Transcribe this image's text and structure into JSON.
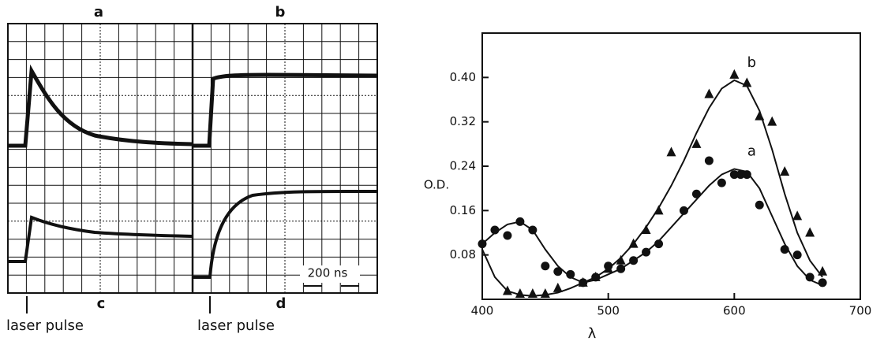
{
  "oscillogram": {
    "panel_labels": [
      "a",
      "b",
      "c",
      "d"
    ],
    "trigger_label": "laser pulse",
    "timescale": "200 ns"
  },
  "chart_data": {
    "type": "scatter",
    "xlabel": "λ",
    "ylabel": "O.D.",
    "xlim": [
      400,
      700
    ],
    "xticks": [
      400,
      500,
      600,
      700
    ],
    "ylim": [
      0,
      0.48
    ],
    "yticks": [
      0.08,
      0.16,
      0.24,
      0.32,
      {
        "value": 0.4,
        "label": "0.40"
      }
    ],
    "fit_x": [
      400,
      410,
      420,
      430,
      440,
      450,
      460,
      470,
      480,
      490,
      500,
      510,
      520,
      530,
      540,
      550,
      560,
      570,
      580,
      590,
      600,
      610,
      620,
      630,
      640,
      650,
      660,
      670
    ],
    "series": [
      {
        "name": "a",
        "marker": "circle",
        "color": "#111",
        "x": [
          400,
          410,
          420,
          430,
          440,
          450,
          460,
          470,
          480,
          490,
          500,
          510,
          520,
          530,
          540,
          560,
          570,
          580,
          590,
          600,
          605,
          610,
          620,
          640,
          650,
          660,
          670
        ],
        "values": [
          0.1,
          0.125,
          0.115,
          0.14,
          0.125,
          0.06,
          0.05,
          0.045,
          0.03,
          0.04,
          0.06,
          0.055,
          0.07,
          0.085,
          0.1,
          0.16,
          0.19,
          0.25,
          0.21,
          0.225,
          0.225,
          0.225,
          0.17,
          0.09,
          0.08,
          0.04,
          0.03
        ],
        "fit": [
          0.1,
          0.12,
          0.135,
          0.14,
          0.125,
          0.09,
          0.06,
          0.04,
          0.03,
          0.035,
          0.045,
          0.055,
          0.07,
          0.085,
          0.105,
          0.13,
          0.155,
          0.18,
          0.205,
          0.225,
          0.235,
          0.23,
          0.2,
          0.15,
          0.1,
          0.06,
          0.035,
          0.025
        ]
      },
      {
        "name": "b",
        "marker": "triangle",
        "color": "#111",
        "x": [
          420,
          430,
          440,
          450,
          460,
          480,
          490,
          500,
          510,
          520,
          530,
          540,
          550,
          570,
          580,
          600,
          610,
          620,
          630,
          640,
          650,
          660,
          670
        ],
        "values": [
          0.015,
          0.01,
          0.01,
          0.01,
          0.02,
          0.03,
          0.04,
          0.055,
          0.07,
          0.1,
          0.125,
          0.16,
          0.265,
          0.28,
          0.37,
          0.405,
          0.39,
          0.33,
          0.32,
          0.23,
          0.15,
          0.12,
          0.05
        ],
        "fit": [
          0.09,
          0.04,
          0.015,
          0.008,
          0.006,
          0.008,
          0.012,
          0.02,
          0.03,
          0.04,
          0.055,
          0.075,
          0.1,
          0.13,
          0.165,
          0.205,
          0.25,
          0.3,
          0.345,
          0.38,
          0.395,
          0.385,
          0.34,
          0.27,
          0.19,
          0.12,
          0.07,
          0.04
        ]
      }
    ]
  }
}
